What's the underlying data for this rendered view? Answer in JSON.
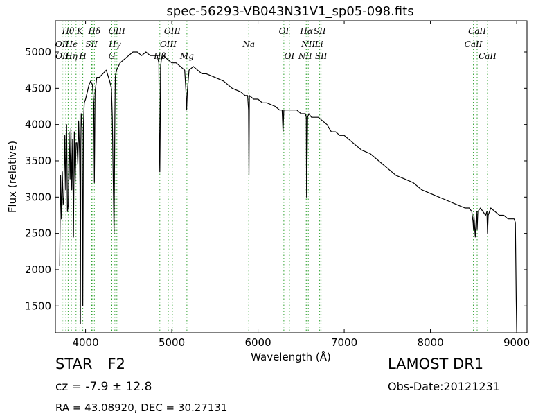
{
  "chart_data": {
    "type": "line",
    "title": "spec-56293-VB043N31V1_sp05-098.fits",
    "xlabel": "Wavelength (Å)",
    "ylabel": "Flux (relative)",
    "xlim": [
      3650,
      9120
    ],
    "ylim": [
      1130,
      5430
    ],
    "xticks": [
      4000,
      5000,
      6000,
      7000,
      8000,
      9000
    ],
    "yticks": [
      1500,
      2000,
      2500,
      3000,
      3500,
      4000,
      4500,
      5000
    ],
    "grid": false,
    "line_color": "#000000",
    "marker_color": "#2ca02c",
    "spectrum": {
      "x": [
        3700,
        3710,
        3720,
        3730,
        3740,
        3750,
        3760,
        3770,
        3780,
        3790,
        3800,
        3810,
        3820,
        3830,
        3840,
        3850,
        3860,
        3870,
        3880,
        3890,
        3900,
        3910,
        3920,
        3930,
        3935,
        3940,
        3945,
        3950,
        3960,
        3968,
        3975,
        3985,
        4000,
        4020,
        4040,
        4060,
        4080,
        4095,
        4102,
        4110,
        4130,
        4160,
        4200,
        4240,
        4280,
        4300,
        4310,
        4320,
        4330,
        4340,
        4345,
        4350,
        4360,
        4380,
        4400,
        4450,
        4500,
        4550,
        4600,
        4650,
        4700,
        4750,
        4800,
        4830,
        4850,
        4855,
        4861,
        4865,
        4870,
        4880,
        4900,
        4950,
        5000,
        5050,
        5100,
        5150,
        5165,
        5172,
        5180,
        5200,
        5250,
        5300,
        5350,
        5400,
        5500,
        5600,
        5700,
        5800,
        5850,
        5880,
        5890,
        5895,
        5900,
        5950,
        6000,
        6050,
        6100,
        6200,
        6250,
        6280,
        6290,
        6300,
        6350,
        6400,
        6450,
        6500,
        6530,
        6550,
        6560,
        6563,
        6568,
        6575,
        6590,
        6620,
        6650,
        6700,
        6750,
        6800,
        6850,
        6900,
        6950,
        7000,
        7100,
        7200,
        7300,
        7400,
        7500,
        7600,
        7700,
        7800,
        7900,
        8000,
        8100,
        8200,
        8300,
        8400,
        8450,
        8480,
        8495,
        8500,
        8505,
        8520,
        8535,
        8542,
        8550,
        8580,
        8640,
        8655,
        8662,
        8670,
        8700,
        8750,
        8800,
        8850,
        8900,
        8950,
        8970,
        8985,
        8995,
        9000
      ],
      "y": [
        2050,
        3300,
        2700,
        3350,
        2900,
        3000,
        3850,
        3100,
        4000,
        2800,
        2900,
        3900,
        3250,
        3950,
        3100,
        3800,
        2450,
        3900,
        3200,
        3750,
        3750,
        3450,
        4050,
        3600,
        3150,
        1250,
        3700,
        4150,
        3950,
        1500,
        4000,
        4300,
        4350,
        4450,
        4550,
        4600,
        4550,
        4300,
        3200,
        4450,
        4650,
        4650,
        4700,
        4750,
        4600,
        4500,
        4100,
        3300,
        2500,
        4100,
        4650,
        4700,
        4750,
        4800,
        4850,
        4900,
        4950,
        5000,
        5000,
        4950,
        5000,
        4950,
        4950,
        4950,
        4850,
        3900,
        3350,
        3900,
        4800,
        4900,
        4950,
        4900,
        4850,
        4850,
        4800,
        4750,
        4450,
        4200,
        4450,
        4750,
        4800,
        4750,
        4700,
        4700,
        4650,
        4600,
        4500,
        4450,
        4400,
        4400,
        4200,
        3300,
        4400,
        4350,
        4350,
        4300,
        4300,
        4250,
        4200,
        4200,
        3900,
        4200,
        4200,
        4200,
        4200,
        4150,
        4150,
        4150,
        4100,
        3000,
        3400,
        4100,
        4150,
        4100,
        4100,
        4100,
        4050,
        4000,
        3900,
        3900,
        3850,
        3850,
        3750,
        3650,
        3600,
        3500,
        3400,
        3300,
        3250,
        3200,
        3100,
        3050,
        3000,
        2950,
        2900,
        2850,
        2850,
        2800,
        2650,
        2550,
        2750,
        2450,
        2800,
        2550,
        2800,
        2850,
        2750,
        2800,
        2500,
        2750,
        2850,
        2800,
        2750,
        2750,
        2700,
        2700,
        2700,
        2650,
        1600,
        1150
      ]
    },
    "lines": [
      {
        "label": "Hθ",
        "x": 3798,
        "row": 0
      },
      {
        "label": "K",
        "x": 3934,
        "row": 0
      },
      {
        "label": "Hδ",
        "x": 4102,
        "row": 0
      },
      {
        "label": "OIII",
        "x": 4363,
        "row": 0
      },
      {
        "label": "OIII",
        "x": 5007,
        "row": 0
      },
      {
        "label": "OI",
        "x": 6300,
        "row": 0
      },
      {
        "label": "Hα",
        "x": 6563,
        "row": 0
      },
      {
        "label": "SII",
        "x": 6716,
        "row": 0
      },
      {
        "label": "CaII",
        "x": 8542,
        "row": 0
      },
      {
        "label": "OII",
        "x": 3727,
        "row": 1
      },
      {
        "label": "Hϵ",
        "x": 3836,
        "row": 1
      },
      {
        "label": "SII",
        "x": 4069,
        "row": 1
      },
      {
        "label": "Hγ",
        "x": 4340,
        "row": 1
      },
      {
        "label": "OIII",
        "x": 4959,
        "row": 1
      },
      {
        "label": "Na",
        "x": 5893,
        "row": 1
      },
      {
        "label": "NII",
        "x": 6583,
        "row": 1
      },
      {
        "label": "Li",
        "x": 6708,
        "row": 1
      },
      {
        "label": "CaII",
        "x": 8498,
        "row": 1
      },
      {
        "label": "OII",
        "x": 3729,
        "row": 2
      },
      {
        "label": "Hη",
        "x": 3835,
        "row": 2
      },
      {
        "label": "H",
        "x": 3968,
        "row": 2
      },
      {
        "label": "G",
        "x": 4305,
        "row": 2
      },
      {
        "label": "Hβ",
        "x": 4861,
        "row": 2
      },
      {
        "label": "Mg",
        "x": 5175,
        "row": 2
      },
      {
        "label": "OI",
        "x": 6364,
        "row": 2
      },
      {
        "label": "NII",
        "x": 6548,
        "row": 2
      },
      {
        "label": "SII",
        "x": 6731,
        "row": 2
      },
      {
        "label": "CaII",
        "x": 8662,
        "row": 2
      }
    ],
    "marker_x": [
      3727,
      3729,
      3750,
      3771,
      3798,
      3835,
      3889,
      3934,
      3968,
      4069,
      4076,
      4102,
      4305,
      4340,
      4363,
      4861,
      4959,
      5007,
      5175,
      5893,
      6300,
      6364,
      6548,
      6563,
      6583,
      6708,
      6716,
      6731,
      8498,
      8542,
      8662
    ]
  },
  "info": {
    "object_type": "STAR",
    "subclass": "F2",
    "survey": "LAMOST DR1",
    "cz": "cz = -7.9  ± 12.8",
    "obs_date": "Obs-Date:20121231",
    "coords": "RA = 43.08920, DEC = 30.27131"
  }
}
